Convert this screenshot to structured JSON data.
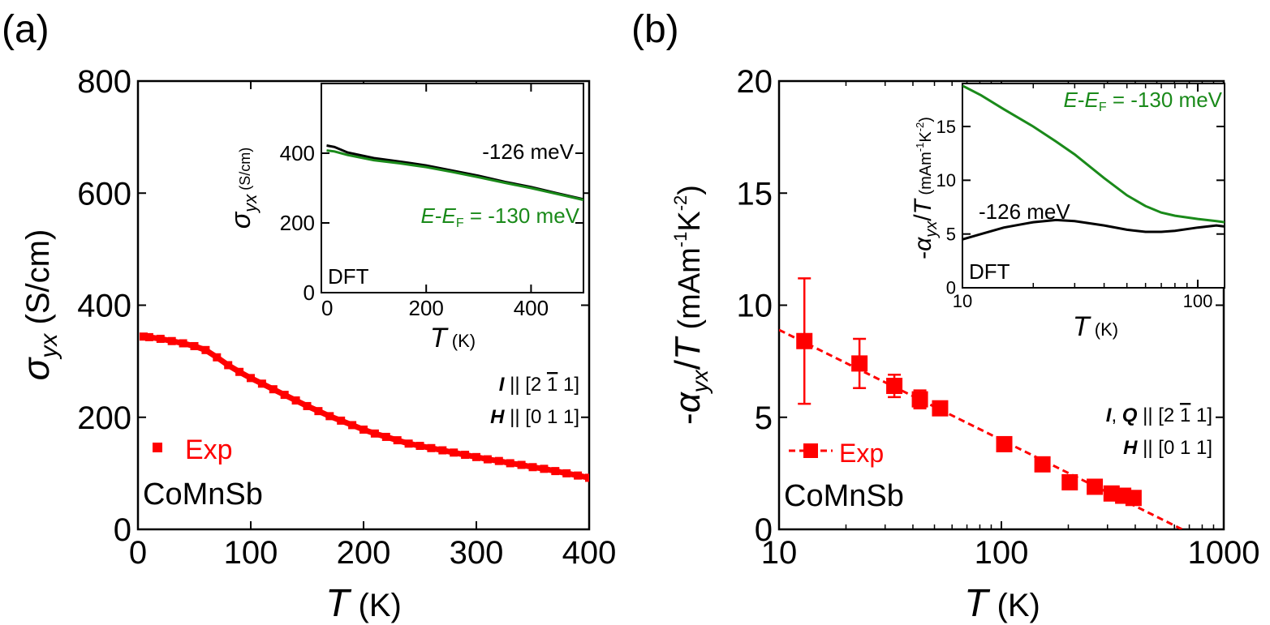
{
  "colors": {
    "exp": "#ff0000",
    "dft_black": "#000000",
    "dft_green": "#1a8a1a",
    "axis": "#000000"
  },
  "chart_data": [
    {
      "panel_label": "(a)",
      "type": "scatter",
      "xlabel_sym": "T",
      "xlabel_unit": " (K)",
      "ylabel_sym": "σ",
      "ylabel_sub": "yx",
      "ylabel_unit": " (S/cm)",
      "xlim": [
        0,
        400
      ],
      "ylim": [
        0,
        800
      ],
      "xticks": [
        0,
        100,
        200,
        300,
        400
      ],
      "yticks": [
        0,
        200,
        400,
        600,
        800
      ],
      "legend": "Exp",
      "sample": "CoMnSb",
      "ann1": {
        "a": "I",
        "b": " || [2 ",
        "c": "1",
        "d": " 1]"
      },
      "ann2": {
        "a": "H",
        "b": " || [0 1 1]"
      },
      "series": [
        {
          "name": "Exp",
          "x": [
            5,
            10,
            20,
            30,
            40,
            50,
            60,
            70,
            80,
            90,
            100,
            110,
            120,
            130,
            140,
            150,
            160,
            170,
            180,
            190,
            200,
            210,
            220,
            230,
            240,
            250,
            260,
            270,
            280,
            290,
            300,
            310,
            320,
            330,
            340,
            350,
            360,
            370,
            380,
            390,
            400
          ],
          "y": [
            344,
            343,
            340,
            336,
            332,
            327,
            320,
            307,
            293,
            281,
            270,
            260,
            250,
            240,
            230,
            220,
            211,
            202,
            194,
            186,
            178,
            171,
            165,
            159,
            153,
            149,
            145,
            141,
            137,
            133,
            129,
            125,
            122,
            118,
            115,
            111,
            108,
            104,
            100,
            96,
            92
          ]
        }
      ],
      "inset": {
        "type": "line",
        "xlabel_sym": "T",
        "xlabel_unit": " (K)",
        "ylabel_sym": "σ",
        "ylabel_sub": "yx",
        "ylabel_unit": " (S/cm)",
        "xlim": [
          0,
          500
        ],
        "ylim": [
          0,
          600
        ],
        "xticks": [
          0,
          200,
          400
        ],
        "yticks": [
          0,
          200,
          400
        ],
        "tag": "DFT",
        "label_black": "-126 meV",
        "label_green": {
          "e": "E",
          "dash": "-",
          "ef": "E",
          "sub": "F",
          "rest": " = -130 meV"
        },
        "series": [
          {
            "name": "-126 meV",
            "x": [
              10,
              25,
              50,
              100,
              150,
              200,
              250,
              300,
              350,
              400,
              450,
              500
            ],
            "y": [
              422,
              418,
              402,
              386,
              376,
              365,
              350,
              335,
              318,
              303,
              285,
              268
            ]
          },
          {
            "name": "E-EF = -130 meV",
            "x": [
              10,
              25,
              50,
              100,
              150,
              200,
              250,
              300,
              350,
              400,
              450,
              500
            ],
            "y": [
              408,
              405,
              395,
              380,
              371,
              360,
              346,
              331,
              315,
              300,
              283,
              266
            ]
          }
        ]
      }
    },
    {
      "panel_label": "(b)",
      "type": "scatter",
      "xscale": "log",
      "xlabel_sym": "T",
      "xlabel_unit": " (K)",
      "ylabel_pre": "-",
      "ylabel_sym": "α",
      "ylabel_sub": "yx",
      "ylabel_mid": "/",
      "ylabel_sym2": "T",
      "ylabel_unit": " (mAm",
      "ylabel_sup1": "-1",
      "ylabel_unit2": "K",
      "ylabel_sup2": "-2",
      "ylabel_close": ")",
      "xlim": [
        10,
        1000
      ],
      "ylim": [
        0,
        20
      ],
      "xticks": [
        10,
        100,
        1000
      ],
      "yticks": [
        0,
        5,
        10,
        15,
        20
      ],
      "legend": "Exp",
      "sample": "CoMnSb",
      "ann1": {
        "a": "I",
        "sep": ", ",
        "q": "Q",
        "b": " || [2 ",
        "c": "1",
        "d": " 1]"
      },
      "ann2": {
        "a": "H",
        "b": " || [0 1 1]"
      },
      "series": [
        {
          "name": "Exp",
          "x": [
            13,
            23,
            33,
            43,
            53,
            103,
            153,
            203,
            263,
            313,
            353,
            393
          ],
          "y": [
            8.4,
            7.4,
            6.4,
            5.8,
            5.4,
            3.8,
            2.9,
            2.1,
            1.9,
            1.6,
            1.5,
            1.4
          ],
          "err": [
            2.8,
            1.1,
            0.5,
            0.4,
            0.3,
            0.2,
            0.2,
            0.2,
            0.2,
            0.2,
            0.2,
            0.2
          ]
        }
      ],
      "fit": {
        "x": [
          10,
          650
        ],
        "y": [
          8.9,
          0
        ]
      },
      "inset": {
        "type": "line",
        "xscale": "log",
        "xlabel_sym": "T",
        "xlabel_unit": " (K)",
        "xlim": [
          10,
          130
        ],
        "ylim": [
          0,
          19
        ],
        "xticks": [
          10,
          100
        ],
        "yticks": [
          0,
          5,
          10,
          15
        ],
        "tag": "DFT",
        "label_black": "-126 meV",
        "label_green": {
          "e": "E",
          "dash": "-",
          "ef": "E",
          "sub": "F",
          "rest": " = -130 meV"
        },
        "series": [
          {
            "name": "-126 meV",
            "x": [
              10,
              12,
              15,
              20,
              25,
              30,
              40,
              50,
              60,
              70,
              80,
              100,
              120,
              130
            ],
            "y": [
              4.5,
              5.0,
              5.6,
              6.1,
              6.3,
              6.2,
              5.8,
              5.4,
              5.2,
              5.2,
              5.3,
              5.6,
              5.8,
              5.7
            ]
          },
          {
            "name": "E-EF = -130 meV",
            "x": [
              10,
              12,
              15,
              20,
              25,
              30,
              40,
              50,
              60,
              70,
              80,
              100,
              120,
              130
            ],
            "y": [
              18.8,
              17.9,
              16.6,
              15.0,
              13.6,
              12.4,
              10.2,
              8.6,
              7.6,
              7.0,
              6.7,
              6.4,
              6.2,
              6.1
            ]
          }
        ]
      }
    }
  ]
}
